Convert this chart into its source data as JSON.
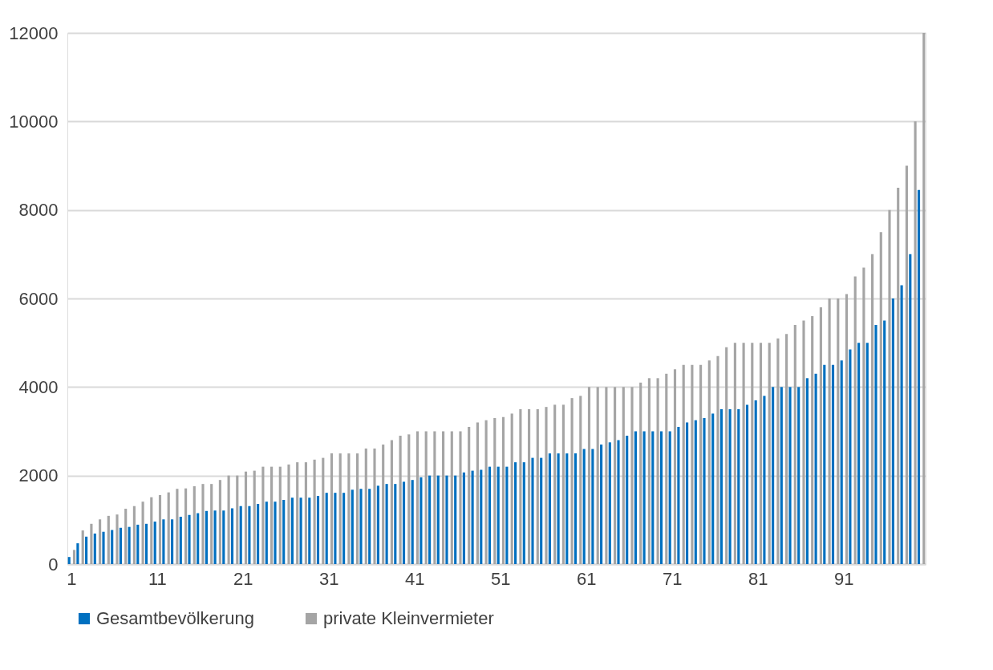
{
  "chart_data": {
    "type": "bar",
    "categories": [
      "1",
      null,
      null,
      null,
      null,
      null,
      null,
      null,
      null,
      null,
      "11",
      null,
      null,
      null,
      null,
      null,
      null,
      null,
      null,
      null,
      "21",
      null,
      null,
      null,
      null,
      null,
      null,
      null,
      null,
      null,
      "31",
      null,
      null,
      null,
      null,
      null,
      null,
      null,
      null,
      null,
      "41",
      null,
      null,
      null,
      null,
      null,
      null,
      null,
      null,
      null,
      "51",
      null,
      null,
      null,
      null,
      null,
      null,
      null,
      null,
      null,
      "61",
      null,
      null,
      null,
      null,
      null,
      null,
      null,
      null,
      null,
      "71",
      null,
      null,
      null,
      null,
      null,
      null,
      null,
      null,
      null,
      "81",
      null,
      null,
      null,
      null,
      null,
      null,
      null,
      null,
      null,
      "91",
      null,
      null,
      null,
      null,
      null,
      null,
      null,
      null,
      null
    ],
    "series": [
      {
        "name": "Gesamtbevölkerung",
        "color": "#0070c0",
        "values": [
          160,
          470,
          620,
          690,
          730,
          770,
          820,
          840,
          890,
          910,
          960,
          1010,
          1010,
          1070,
          1110,
          1150,
          1200,
          1210,
          1210,
          1260,
          1310,
          1310,
          1360,
          1410,
          1410,
          1450,
          1500,
          1500,
          1500,
          1540,
          1610,
          1610,
          1610,
          1680,
          1700,
          1700,
          1770,
          1810,
          1810,
          1860,
          1900,
          1960,
          2000,
          2000,
          2000,
          2000,
          2070,
          2110,
          2130,
          2200,
          2200,
          2200,
          2300,
          2300,
          2400,
          2400,
          2500,
          2500,
          2500,
          2500,
          2600,
          2600,
          2700,
          2750,
          2800,
          2900,
          3000,
          3000,
          3000,
          3000,
          3000,
          3100,
          3200,
          3250,
          3300,
          3400,
          3500,
          3500,
          3500,
          3600,
          3700,
          3800,
          4000,
          4000,
          4000,
          4000,
          4200,
          4300,
          4500,
          4500,
          4600,
          4850,
          5000,
          5000,
          5400,
          5500,
          6000,
          6300,
          7000,
          8450
        ]
      },
      {
        "name": "private Kleinvermieter",
        "color": "#a5a5a5",
        "values": [
          320,
          760,
          910,
          1010,
          1090,
          1120,
          1250,
          1310,
          1410,
          1510,
          1560,
          1620,
          1700,
          1710,
          1760,
          1810,
          1810,
          1900,
          2000,
          2000,
          2090,
          2110,
          2200,
          2200,
          2200,
          2250,
          2300,
          2300,
          2360,
          2400,
          2500,
          2500,
          2500,
          2500,
          2610,
          2610,
          2700,
          2800,
          2900,
          2930,
          3000,
          3000,
          3000,
          3000,
          3000,
          3000,
          3100,
          3200,
          3250,
          3300,
          3320,
          3400,
          3500,
          3500,
          3500,
          3550,
          3600,
          3600,
          3750,
          3800,
          4000,
          4000,
          4000,
          4000,
          4000,
          4000,
          4100,
          4200,
          4200,
          4300,
          4400,
          4500,
          4500,
          4500,
          4600,
          4700,
          4900,
          5000,
          5000,
          5000,
          5000,
          5000,
          5100,
          5200,
          5400,
          5500,
          5600,
          5800,
          6000,
          6000,
          6100,
          6500,
          6700,
          7000,
          7500,
          8000,
          8500,
          9000,
          10000,
          12000
        ]
      }
    ],
    "ylim": [
      0,
      12000
    ],
    "yticks": [
      0,
      2000,
      4000,
      6000,
      8000,
      10000,
      12000
    ],
    "grid": "y",
    "legend": "bottom"
  }
}
